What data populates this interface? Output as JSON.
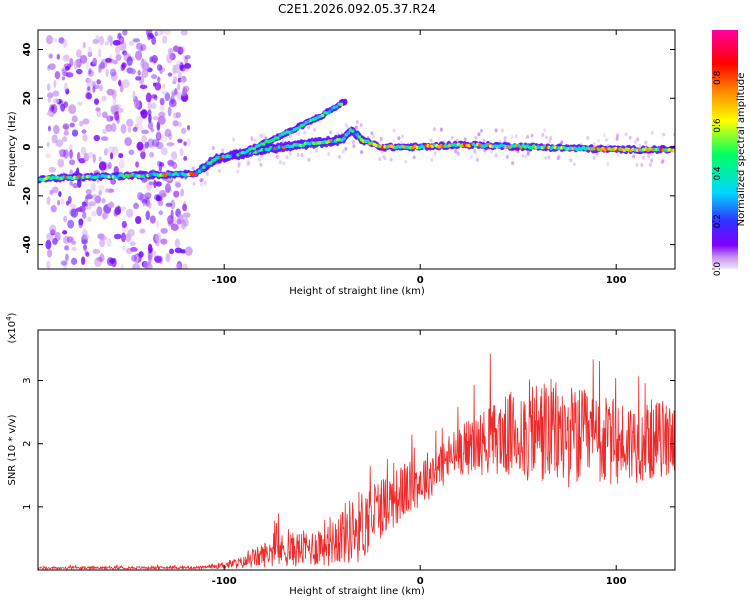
{
  "figure_title": "C2E1.2026.092.05.37.R24",
  "colors": {
    "snr_line": "#ee2a2a",
    "axis": "#000000",
    "background": "#ffffff"
  },
  "chart_data": [
    {
      "type": "heatmap",
      "title": "C2E1.2026.092.05.37.R24",
      "xlabel": "Height of straight line (km)",
      "ylabel": "Frequency (Hz)",
      "xlim": [
        -195,
        130
      ],
      "ylim": [
        -50,
        48
      ],
      "xticks": [
        -100,
        0,
        100
      ],
      "xtick_labels": [
        "-100",
        "0",
        "100"
      ],
      "yticks": [
        -40,
        -20,
        0,
        20,
        40
      ],
      "ytick_labels": [
        "-40",
        "-20",
        "0",
        "20",
        "40"
      ],
      "colorbar": {
        "label": "Normalized spectral amplitude",
        "range": [
          0,
          1
        ],
        "ticks": [
          0,
          0.2,
          0.4,
          0.6,
          0.8
        ],
        "tick_labels": [
          "0.0",
          "0.2",
          "0.4",
          "0.6",
          "0.8"
        ],
        "colormap": [
          "#f0e8f8",
          "#8000ff",
          "#3030ff",
          "#00d8ff",
          "#00ff60",
          "#ffff00",
          "#ff8000",
          "#ff0000",
          "#ff00a0"
        ]
      },
      "ridge": [
        {
          "x": -195,
          "freq": -13
        },
        {
          "x": -120,
          "freq": -11
        },
        {
          "x": -115,
          "freq": -11
        },
        {
          "x": -105,
          "freq": -5
        },
        {
          "x": -80,
          "freq": -1
        },
        {
          "x": -60,
          "freq": 1
        },
        {
          "x": -40,
          "freq": 3
        },
        {
          "x": -35,
          "freq": 7
        },
        {
          "x": -30,
          "freq": 3
        },
        {
          "x": -20,
          "freq": 0
        },
        {
          "x": 0,
          "freq": 0
        },
        {
          "x": 20,
          "freq": 1
        },
        {
          "x": 60,
          "freq": 0
        },
        {
          "x": 100,
          "freq": -1
        },
        {
          "x": 130,
          "freq": -1
        }
      ],
      "upper_branch": [
        {
          "x": -95,
          "freq": -4
        },
        {
          "x": -70,
          "freq": 5
        },
        {
          "x": -50,
          "freq": 13
        },
        {
          "x": -38,
          "freq": 19
        }
      ]
    },
    {
      "type": "line",
      "xlabel": "Height of straight line (km)",
      "ylabel": "SNR (10 * v/v)",
      "y_multiplier_label": "(x10",
      "y_multiplier_exponent": "4",
      "y_multiplier_close": ")",
      "xlim": [
        -195,
        130
      ],
      "ylim": [
        0,
        3.8
      ],
      "xticks": [
        -100,
        0,
        100
      ],
      "xtick_labels": [
        "-100",
        "0",
        "100"
      ],
      "yticks": [
        1,
        2,
        3
      ],
      "ytick_labels": [
        "1",
        "2",
        "3"
      ],
      "series": [
        {
          "name": "SNR",
          "envelope": [
            {
              "x": -195,
              "mean": 0.03,
              "amp": 0.02
            },
            {
              "x": -110,
              "mean": 0.04,
              "amp": 0.02
            },
            {
              "x": -90,
              "mean": 0.12,
              "amp": 0.1
            },
            {
              "x": -75,
              "mean": 0.3,
              "amp": 0.25
            },
            {
              "x": -55,
              "mean": 0.35,
              "amp": 0.3
            },
            {
              "x": -30,
              "mean": 0.7,
              "amp": 0.6
            },
            {
              "x": -20,
              "mean": 1.0,
              "amp": 0.5
            },
            {
              "x": 0,
              "mean": 1.4,
              "amp": 0.4
            },
            {
              "x": 20,
              "mean": 1.9,
              "amp": 0.4
            },
            {
              "x": 40,
              "mean": 2.1,
              "amp": 0.6
            },
            {
              "x": 60,
              "mean": 2.2,
              "amp": 0.9
            },
            {
              "x": 80,
              "mean": 2.1,
              "amp": 0.8
            },
            {
              "x": 100,
              "mean": 2.0,
              "amp": 0.7
            },
            {
              "x": 130,
              "mean": 2.1,
              "amp": 0.6
            }
          ]
        }
      ]
    }
  ]
}
